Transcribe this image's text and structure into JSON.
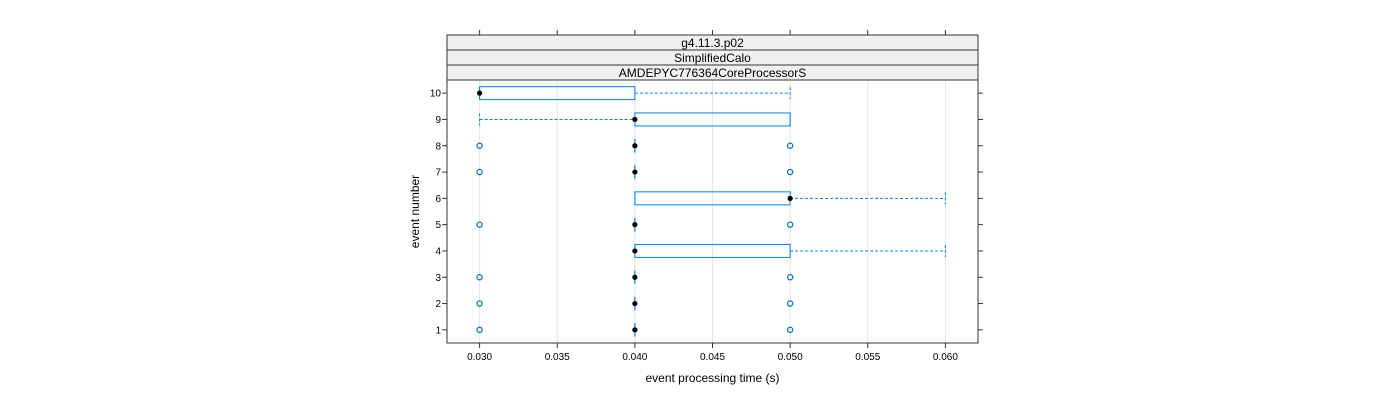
{
  "chart_data": {
    "type": "boxplot",
    "strips": [
      "g4.11.3.p02",
      "SimplifiedCalo",
      "AMDEPYC776364CoreProcessorS"
    ],
    "xlabel": "event processing time (s)",
    "ylabel": "event number",
    "xlim": [
      0.0279,
      0.0621
    ],
    "x_ticks": [
      0.03,
      0.035,
      0.04,
      0.045,
      0.05,
      0.055,
      0.06
    ],
    "x_tick_labels": [
      "0.030",
      "0.035",
      "0.040",
      "0.045",
      "0.050",
      "0.055",
      "0.060"
    ],
    "categories": [
      "1",
      "2",
      "3",
      "4",
      "5",
      "6",
      "7",
      "8",
      "9",
      "10"
    ],
    "grid": true,
    "colors": {
      "box": "#0080ff",
      "median": "#000000",
      "outlier": "#0072b2"
    },
    "rows": [
      {
        "event": "1",
        "lower_whisker": 0.04,
        "q1": 0.04,
        "median": 0.04,
        "q3": 0.04,
        "upper_whisker": 0.04,
        "outliers": [
          0.03,
          0.05
        ]
      },
      {
        "event": "2",
        "lower_whisker": 0.04,
        "q1": 0.04,
        "median": 0.04,
        "q3": 0.04,
        "upper_whisker": 0.04,
        "outliers": [
          0.03,
          0.05
        ]
      },
      {
        "event": "3",
        "lower_whisker": 0.04,
        "q1": 0.04,
        "median": 0.04,
        "q3": 0.04,
        "upper_whisker": 0.04,
        "outliers": [
          0.03,
          0.05
        ]
      },
      {
        "event": "4",
        "lower_whisker": 0.04,
        "q1": 0.04,
        "median": 0.04,
        "q3": 0.05,
        "upper_whisker": 0.06,
        "outliers": []
      },
      {
        "event": "5",
        "lower_whisker": 0.04,
        "q1": 0.04,
        "median": 0.04,
        "q3": 0.04,
        "upper_whisker": 0.04,
        "outliers": [
          0.03,
          0.05
        ]
      },
      {
        "event": "6",
        "lower_whisker": 0.04,
        "q1": 0.04,
        "median": 0.05,
        "q3": 0.05,
        "upper_whisker": 0.06,
        "outliers": []
      },
      {
        "event": "7",
        "lower_whisker": 0.04,
        "q1": 0.04,
        "median": 0.04,
        "q3": 0.04,
        "upper_whisker": 0.04,
        "outliers": [
          0.03,
          0.05
        ]
      },
      {
        "event": "8",
        "lower_whisker": 0.04,
        "q1": 0.04,
        "median": 0.04,
        "q3": 0.04,
        "upper_whisker": 0.04,
        "outliers": [
          0.03,
          0.05
        ]
      },
      {
        "event": "9",
        "lower_whisker": 0.03,
        "q1": 0.04,
        "median": 0.04,
        "q3": 0.05,
        "upper_whisker": 0.05,
        "outliers": []
      },
      {
        "event": "10",
        "lower_whisker": 0.03,
        "q1": 0.03,
        "median": 0.03,
        "q3": 0.04,
        "upper_whisker": 0.05,
        "outliers": []
      }
    ]
  }
}
